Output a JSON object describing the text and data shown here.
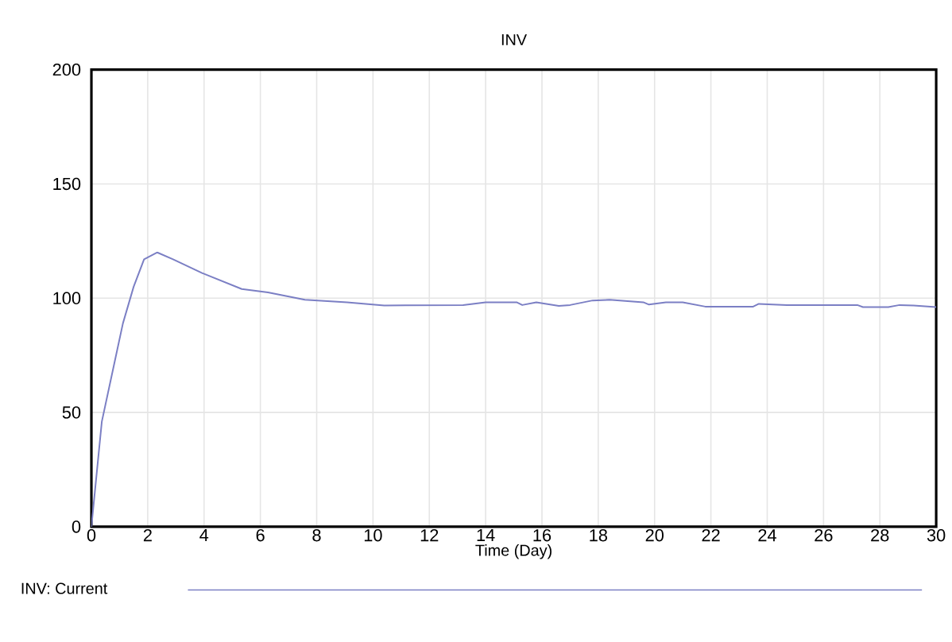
{
  "chart_data": {
    "type": "line",
    "title": "INV",
    "xlabel": "Time (Day)",
    "series": [
      {
        "name": "INV: Current",
        "color": "#7b7fc4",
        "x": [
          0,
          0.37,
          0.84,
          1.12,
          1.5,
          1.87,
          2.34,
          2.9,
          3.93,
          5.34,
          6.27,
          7.58,
          9.08,
          10.4,
          13.2,
          14.0,
          15.1,
          15.3,
          15.8,
          16.6,
          17.0,
          17.8,
          18.4,
          19.6,
          19.8,
          20.4,
          21.0,
          21.8,
          23.5,
          23.7,
          24.7,
          27.2,
          27.4,
          28.3,
          28.7,
          29.2,
          30
        ],
        "values": [
          0,
          46,
          73,
          89,
          105,
          117,
          120,
          117,
          111,
          104,
          102.5,
          99.3,
          98.2,
          96.8,
          97,
          98.2,
          98.2,
          97,
          98.2,
          96.6,
          97,
          99,
          99.3,
          98.2,
          97.2,
          98.2,
          98.2,
          96.3,
          96.3,
          97.5,
          97,
          97,
          96.1,
          96.1,
          97,
          96.8,
          96.1
        ]
      }
    ],
    "xlim": [
      0,
      30
    ],
    "xticks": [
      0,
      2,
      4,
      6,
      8,
      10,
      12,
      14,
      16,
      18,
      20,
      22,
      24,
      26,
      28,
      30
    ],
    "ylim": [
      0,
      200
    ],
    "yticks": [
      0,
      50,
      100,
      150,
      200
    ],
    "grid": true,
    "legend": "bottom",
    "marker": "none",
    "line_style": "solid"
  }
}
